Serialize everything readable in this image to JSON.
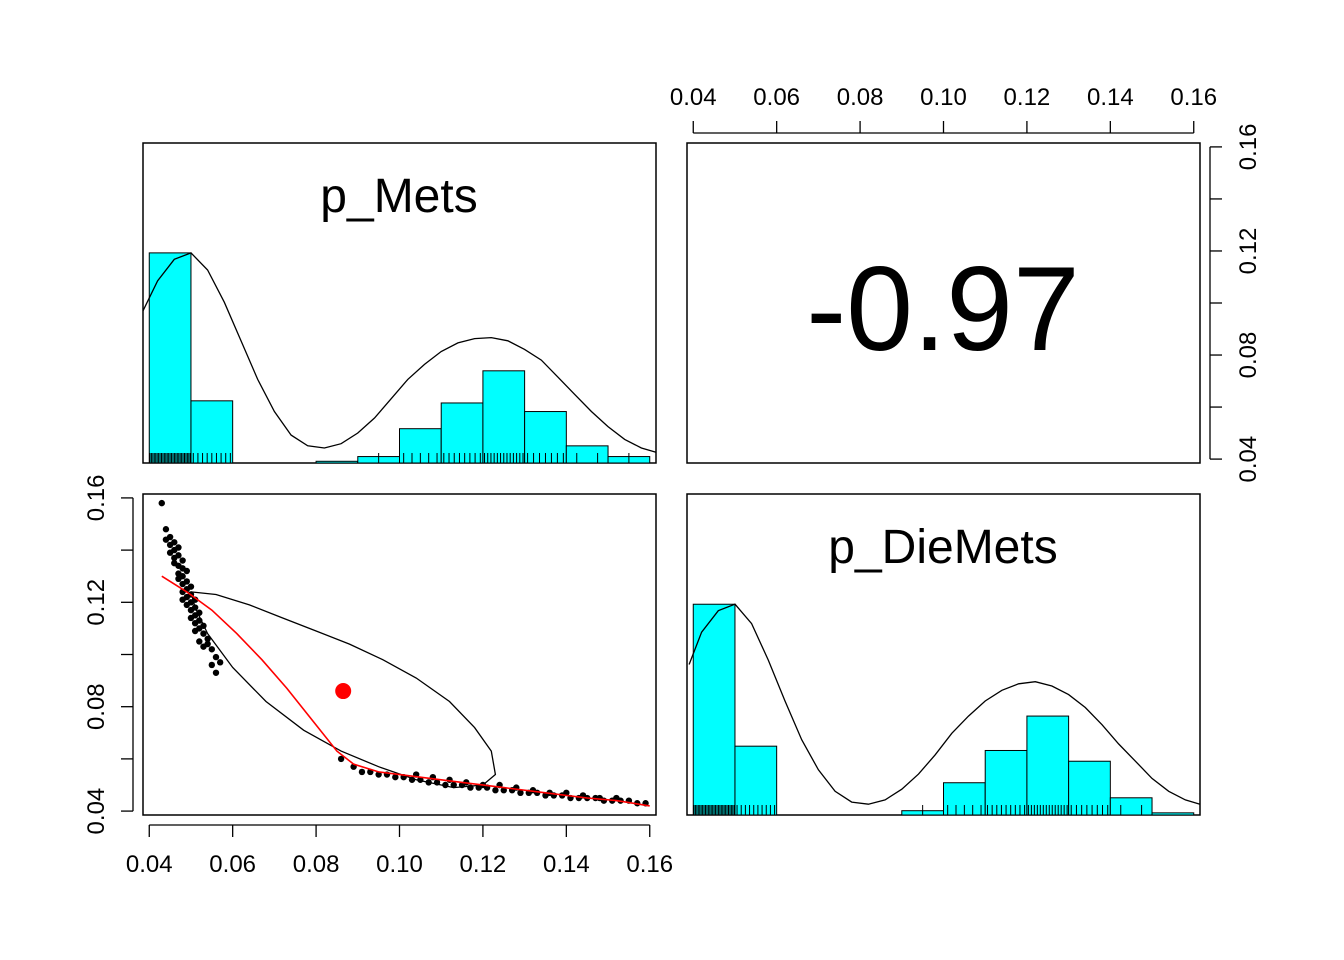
{
  "chart_data": {
    "type": "scatter",
    "layout": "pairs-panels-2x2",
    "variables": [
      "p_Mets",
      "p_DieMets"
    ],
    "axis_range": [
      0.04,
      0.16
    ],
    "tick_values": [
      0.04,
      0.06,
      0.08,
      0.1,
      0.12,
      0.14,
      0.16
    ],
    "tick_labels": [
      "0.04",
      "0.06",
      "0.08",
      "0.10",
      "0.12",
      "0.14",
      "0.16"
    ],
    "correlation": {
      "label": "-0.97",
      "value": -0.97
    },
    "colors": {
      "histogram_fill": "#00ffff",
      "points": "#000000",
      "loess": "#ff0000",
      "mean_point": "#ff0000",
      "ellipse": "#000000",
      "density": "#000000"
    },
    "diagonal": {
      "p_Mets": {
        "bins": [
          {
            "x0": 0.04,
            "x1": 0.05,
            "h": 0.98
          },
          {
            "x0": 0.05,
            "x1": 0.06,
            "h": 0.29
          },
          {
            "x0": 0.06,
            "x1": 0.07,
            "h": 0.0
          },
          {
            "x0": 0.07,
            "x1": 0.08,
            "h": 0.0
          },
          {
            "x0": 0.08,
            "x1": 0.09,
            "h": 0.008
          },
          {
            "x0": 0.09,
            "x1": 0.1,
            "h": 0.03
          },
          {
            "x0": 0.1,
            "x1": 0.11,
            "h": 0.16
          },
          {
            "x0": 0.11,
            "x1": 0.12,
            "h": 0.28
          },
          {
            "x0": 0.12,
            "x1": 0.13,
            "h": 0.43
          },
          {
            "x0": 0.13,
            "x1": 0.14,
            "h": 0.24
          },
          {
            "x0": 0.14,
            "x1": 0.15,
            "h": 0.08
          },
          {
            "x0": 0.15,
            "x1": 0.16,
            "h": 0.03
          }
        ],
        "density": {
          "x": [
            0.038,
            0.042,
            0.046,
            0.05,
            0.054,
            0.058,
            0.062,
            0.066,
            0.07,
            0.074,
            0.078,
            0.082,
            0.086,
            0.09,
            0.094,
            0.098,
            0.102,
            0.106,
            0.11,
            0.114,
            0.118,
            0.122,
            0.126,
            0.13,
            0.134,
            0.138,
            0.142,
            0.146,
            0.15,
            0.154,
            0.158,
            0.162
          ],
          "y": [
            0.71,
            0.85,
            0.95,
            0.98,
            0.9,
            0.75,
            0.57,
            0.39,
            0.24,
            0.13,
            0.08,
            0.07,
            0.09,
            0.14,
            0.21,
            0.3,
            0.39,
            0.46,
            0.52,
            0.56,
            0.58,
            0.585,
            0.57,
            0.53,
            0.48,
            0.4,
            0.32,
            0.24,
            0.17,
            0.11,
            0.07,
            0.05
          ]
        }
      },
      "p_DieMets": {
        "bins": [
          {
            "x0": 0.04,
            "x1": 0.05,
            "h": 0.98
          },
          {
            "x0": 0.05,
            "x1": 0.06,
            "h": 0.32
          },
          {
            "x0": 0.06,
            "x1": 0.07,
            "h": 0.0
          },
          {
            "x0": 0.07,
            "x1": 0.08,
            "h": 0.0
          },
          {
            "x0": 0.08,
            "x1": 0.09,
            "h": 0.0
          },
          {
            "x0": 0.09,
            "x1": 0.1,
            "h": 0.02
          },
          {
            "x0": 0.1,
            "x1": 0.11,
            "h": 0.15
          },
          {
            "x0": 0.11,
            "x1": 0.12,
            "h": 0.3
          },
          {
            "x0": 0.12,
            "x1": 0.13,
            "h": 0.46
          },
          {
            "x0": 0.13,
            "x1": 0.14,
            "h": 0.25
          },
          {
            "x0": 0.14,
            "x1": 0.15,
            "h": 0.08
          },
          {
            "x0": 0.15,
            "x1": 0.16,
            "h": 0.01
          }
        ],
        "density": {
          "x": [
            0.039,
            0.042,
            0.046,
            0.05,
            0.054,
            0.058,
            0.062,
            0.066,
            0.07,
            0.074,
            0.078,
            0.082,
            0.086,
            0.09,
            0.094,
            0.098,
            0.102,
            0.106,
            0.11,
            0.114,
            0.118,
            0.122,
            0.126,
            0.13,
            0.134,
            0.138,
            0.142,
            0.146,
            0.15,
            0.154,
            0.158,
            0.162
          ],
          "y": [
            0.7,
            0.85,
            0.95,
            0.98,
            0.89,
            0.72,
            0.53,
            0.35,
            0.21,
            0.11,
            0.06,
            0.05,
            0.07,
            0.12,
            0.19,
            0.28,
            0.38,
            0.46,
            0.53,
            0.58,
            0.61,
            0.62,
            0.6,
            0.56,
            0.5,
            0.42,
            0.33,
            0.25,
            0.17,
            0.11,
            0.07,
            0.05
          ]
        }
      }
    },
    "scatter": {
      "points": [
        [
          0.043,
          0.158
        ],
        [
          0.044,
          0.148
        ],
        [
          0.045,
          0.145
        ],
        [
          0.045,
          0.142
        ],
        [
          0.046,
          0.143
        ],
        [
          0.046,
          0.14
        ],
        [
          0.046,
          0.137
        ],
        [
          0.047,
          0.141
        ],
        [
          0.047,
          0.138
        ],
        [
          0.047,
          0.134
        ],
        [
          0.047,
          0.131
        ],
        [
          0.048,
          0.136
        ],
        [
          0.048,
          0.133
        ],
        [
          0.048,
          0.13
        ],
        [
          0.048,
          0.127
        ],
        [
          0.049,
          0.132
        ],
        [
          0.049,
          0.128
        ],
        [
          0.049,
          0.125
        ],
        [
          0.049,
          0.122
        ],
        [
          0.05,
          0.126
        ],
        [
          0.05,
          0.123
        ],
        [
          0.05,
          0.12
        ],
        [
          0.05,
          0.117
        ],
        [
          0.051,
          0.121
        ],
        [
          0.051,
          0.118
        ],
        [
          0.051,
          0.115
        ],
        [
          0.051,
          0.112
        ],
        [
          0.052,
          0.116
        ],
        [
          0.052,
          0.113
        ],
        [
          0.052,
          0.11
        ],
        [
          0.053,
          0.111
        ],
        [
          0.053,
          0.108
        ],
        [
          0.054,
          0.106
        ],
        [
          0.054,
          0.104
        ],
        [
          0.055,
          0.102
        ],
        [
          0.056,
          0.099
        ],
        [
          0.057,
          0.097
        ],
        [
          0.046,
          0.135
        ],
        [
          0.047,
          0.129
        ],
        [
          0.048,
          0.124
        ],
        [
          0.049,
          0.119
        ],
        [
          0.05,
          0.114
        ],
        [
          0.051,
          0.109
        ],
        [
          0.052,
          0.105
        ],
        [
          0.053,
          0.103
        ],
        [
          0.055,
          0.096
        ],
        [
          0.056,
          0.093
        ],
        [
          0.045,
          0.139
        ],
        [
          0.044,
          0.144
        ],
        [
          0.048,
          0.121
        ],
        [
          0.086,
          0.06
        ],
        [
          0.089,
          0.057
        ],
        [
          0.091,
          0.055
        ],
        [
          0.093,
          0.055
        ],
        [
          0.095,
          0.054
        ],
        [
          0.097,
          0.054
        ],
        [
          0.099,
          0.053
        ],
        [
          0.101,
          0.053
        ],
        [
          0.103,
          0.052
        ],
        [
          0.105,
          0.052
        ],
        [
          0.107,
          0.051
        ],
        [
          0.109,
          0.051
        ],
        [
          0.111,
          0.05
        ],
        [
          0.113,
          0.05
        ],
        [
          0.115,
          0.05
        ],
        [
          0.117,
          0.049
        ],
        [
          0.119,
          0.049
        ],
        [
          0.121,
          0.049
        ],
        [
          0.123,
          0.048
        ],
        [
          0.125,
          0.048
        ],
        [
          0.127,
          0.048
        ],
        [
          0.129,
          0.047
        ],
        [
          0.131,
          0.047
        ],
        [
          0.133,
          0.047
        ],
        [
          0.135,
          0.046
        ],
        [
          0.137,
          0.046
        ],
        [
          0.139,
          0.046
        ],
        [
          0.141,
          0.045
        ],
        [
          0.143,
          0.045
        ],
        [
          0.145,
          0.045
        ],
        [
          0.147,
          0.045
        ],
        [
          0.149,
          0.044
        ],
        [
          0.151,
          0.044
        ],
        [
          0.153,
          0.044
        ],
        [
          0.155,
          0.044
        ],
        [
          0.157,
          0.043
        ],
        [
          0.159,
          0.043
        ],
        [
          0.104,
          0.054
        ],
        [
          0.108,
          0.053
        ],
        [
          0.112,
          0.052
        ],
        [
          0.116,
          0.051
        ],
        [
          0.12,
          0.05
        ],
        [
          0.124,
          0.05
        ],
        [
          0.128,
          0.049
        ],
        [
          0.132,
          0.048
        ],
        [
          0.136,
          0.047
        ],
        [
          0.14,
          0.047
        ],
        [
          0.144,
          0.046
        ],
        [
          0.148,
          0.045
        ],
        [
          0.152,
          0.045
        ]
      ],
      "loess": {
        "x": [
          0.043,
          0.049,
          0.055,
          0.061,
          0.067,
          0.073,
          0.079,
          0.085,
          0.089,
          0.095,
          0.105,
          0.115,
          0.125,
          0.135,
          0.145,
          0.152,
          0.16
        ],
        "y": [
          0.13,
          0.124,
          0.117,
          0.108,
          0.098,
          0.087,
          0.075,
          0.063,
          0.058,
          0.055,
          0.053,
          0.051,
          0.049,
          0.047,
          0.045,
          0.044,
          0.042
        ]
      },
      "mean": [
        0.0865,
        0.086
      ],
      "ellipse": {
        "x": [
          0.05,
          0.056,
          0.064,
          0.072,
          0.08,
          0.088,
          0.096,
          0.104,
          0.112,
          0.118,
          0.122,
          0.123,
          0.12,
          0.113,
          0.104,
          0.095,
          0.086,
          0.077,
          0.068,
          0.06,
          0.054,
          0.051,
          0.05
        ],
        "y": [
          0.124,
          0.123,
          0.119,
          0.114,
          0.109,
          0.104,
          0.098,
          0.091,
          0.082,
          0.072,
          0.063,
          0.054,
          0.05,
          0.049,
          0.052,
          0.057,
          0.063,
          0.071,
          0.082,
          0.095,
          0.108,
          0.118,
          0.124
        ]
      }
    }
  }
}
